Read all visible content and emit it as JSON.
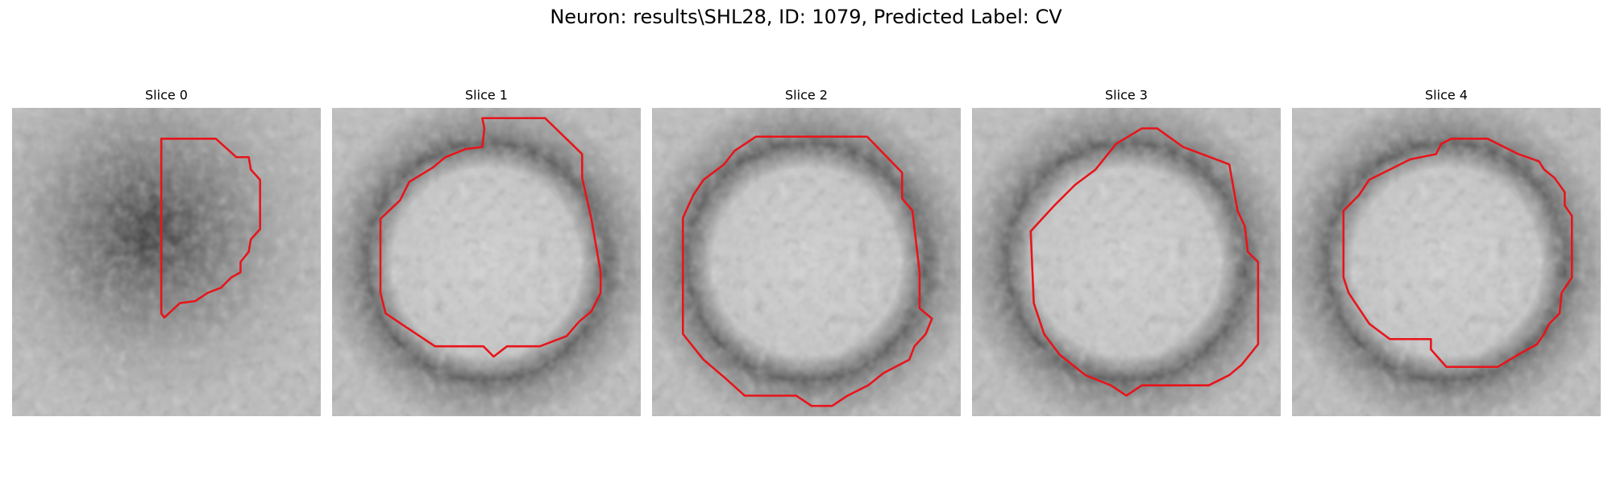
{
  "header": {
    "title": "Neuron: results\\SHL28, ID: 1079, Predicted Label: CV"
  },
  "panels": [
    {
      "title": "Slice 0"
    },
    {
      "title": "Slice 1"
    },
    {
      "title": "Slice 2"
    },
    {
      "title": "Slice 3"
    },
    {
      "title": "Slice 4"
    }
  ]
}
